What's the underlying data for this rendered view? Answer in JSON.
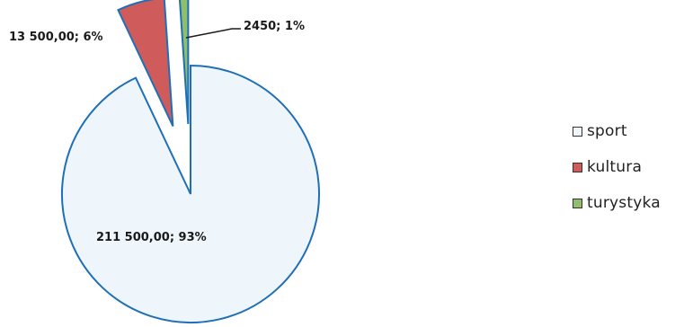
{
  "chart_data": {
    "type": "pie",
    "categories": [
      "sport",
      "kultura",
      "turystyka"
    ],
    "values": [
      211500.0,
      13500.0,
      2450
    ],
    "percentages": [
      93,
      6,
      1
    ],
    "data_labels": [
      "211 500,00; 93%",
      "13 500,00; 6%",
      "2450; 1%"
    ],
    "exploded": true,
    "legend_position": "right",
    "colors": {
      "sport_fill": "#eef6fb",
      "sport_stroke": "#1f6fb8",
      "kultura_fill": "#cf5b5b",
      "kultura_stroke": "#1f6fb8",
      "turystyka_fill": "#8fbf6a",
      "turystyka_stroke": "#1f6fb8"
    }
  },
  "legend": {
    "items": [
      {
        "label": "sport",
        "color": "#eef6fb"
      },
      {
        "label": "kultura",
        "color": "#cf5b5b"
      },
      {
        "label": "turystyka",
        "color": "#8fbf6a"
      }
    ]
  }
}
